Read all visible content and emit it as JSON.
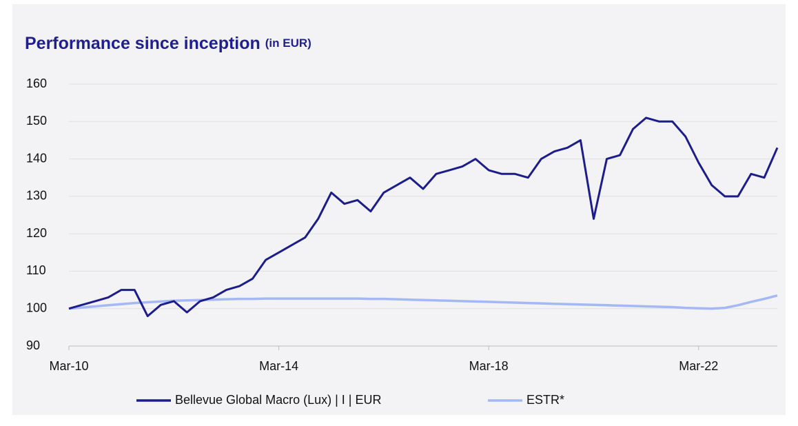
{
  "chart_data": {
    "type": "line",
    "title": "Performance since inception",
    "subtitle": "(in EUR)",
    "x": [
      "2010-03",
      "2010-06",
      "2010-09",
      "2010-12",
      "2011-03",
      "2011-06",
      "2011-09",
      "2011-12",
      "2012-03",
      "2012-06",
      "2012-09",
      "2012-12",
      "2013-03",
      "2013-06",
      "2013-09",
      "2013-12",
      "2014-03",
      "2014-06",
      "2014-09",
      "2014-12",
      "2015-03",
      "2015-06",
      "2015-09",
      "2015-12",
      "2016-03",
      "2016-06",
      "2016-09",
      "2016-12",
      "2017-03",
      "2017-06",
      "2017-09",
      "2017-12",
      "2018-03",
      "2018-06",
      "2018-09",
      "2018-12",
      "2019-03",
      "2019-06",
      "2019-09",
      "2019-12",
      "2020-03",
      "2020-06",
      "2020-09",
      "2020-12",
      "2021-03",
      "2021-06",
      "2021-09",
      "2021-12",
      "2022-03",
      "2022-06",
      "2022-09",
      "2022-12",
      "2023-03",
      "2023-06",
      "2023-09"
    ],
    "series": [
      {
        "name": "Bellevue Global Macro (Lux) | I | EUR",
        "color": "#1c1c8c",
        "values": [
          100,
          101,
          102,
          103,
          105,
          105,
          98,
          101,
          102,
          99,
          102,
          103,
          105,
          106,
          108,
          113,
          115,
          117,
          119,
          124,
          131,
          128,
          129,
          126,
          131,
          133,
          135,
          132,
          136,
          137,
          138,
          140,
          137,
          136,
          136,
          135,
          140,
          142,
          143,
          145,
          124,
          140,
          141,
          148,
          151,
          150,
          150,
          146,
          139,
          133,
          130,
          130,
          136,
          135,
          143
        ]
      },
      {
        "name": "ESTR*",
        "color": "#a3b8f5",
        "values": [
          100,
          100.3,
          100.6,
          100.9,
          101.2,
          101.5,
          101.7,
          101.9,
          102.1,
          102.2,
          102.3,
          102.4,
          102.5,
          102.6,
          102.6,
          102.7,
          102.7,
          102.7,
          102.7,
          102.7,
          102.7,
          102.7,
          102.7,
          102.6,
          102.6,
          102.5,
          102.4,
          102.3,
          102.2,
          102.1,
          102.0,
          101.9,
          101.8,
          101.7,
          101.6,
          101.5,
          101.4,
          101.3,
          101.2,
          101.1,
          101.0,
          100.9,
          100.8,
          100.7,
          100.6,
          100.5,
          100.4,
          100.2,
          100.1,
          100.0,
          100.2,
          100.9,
          101.8,
          102.6,
          103.5
        ]
      }
    ],
    "xlim": [
      "2010-03",
      "2023-09"
    ],
    "xticks": [
      {
        "value": "2010-03",
        "label": "Mar-10"
      },
      {
        "value": "2014-03",
        "label": "Mar-14"
      },
      {
        "value": "2018-03",
        "label": "Mar-18"
      },
      {
        "value": "2022-03",
        "label": "Mar-22"
      }
    ],
    "ylim": [
      90,
      160
    ],
    "yticks": [
      90,
      100,
      110,
      120,
      130,
      140,
      150,
      160
    ],
    "grid": true
  }
}
